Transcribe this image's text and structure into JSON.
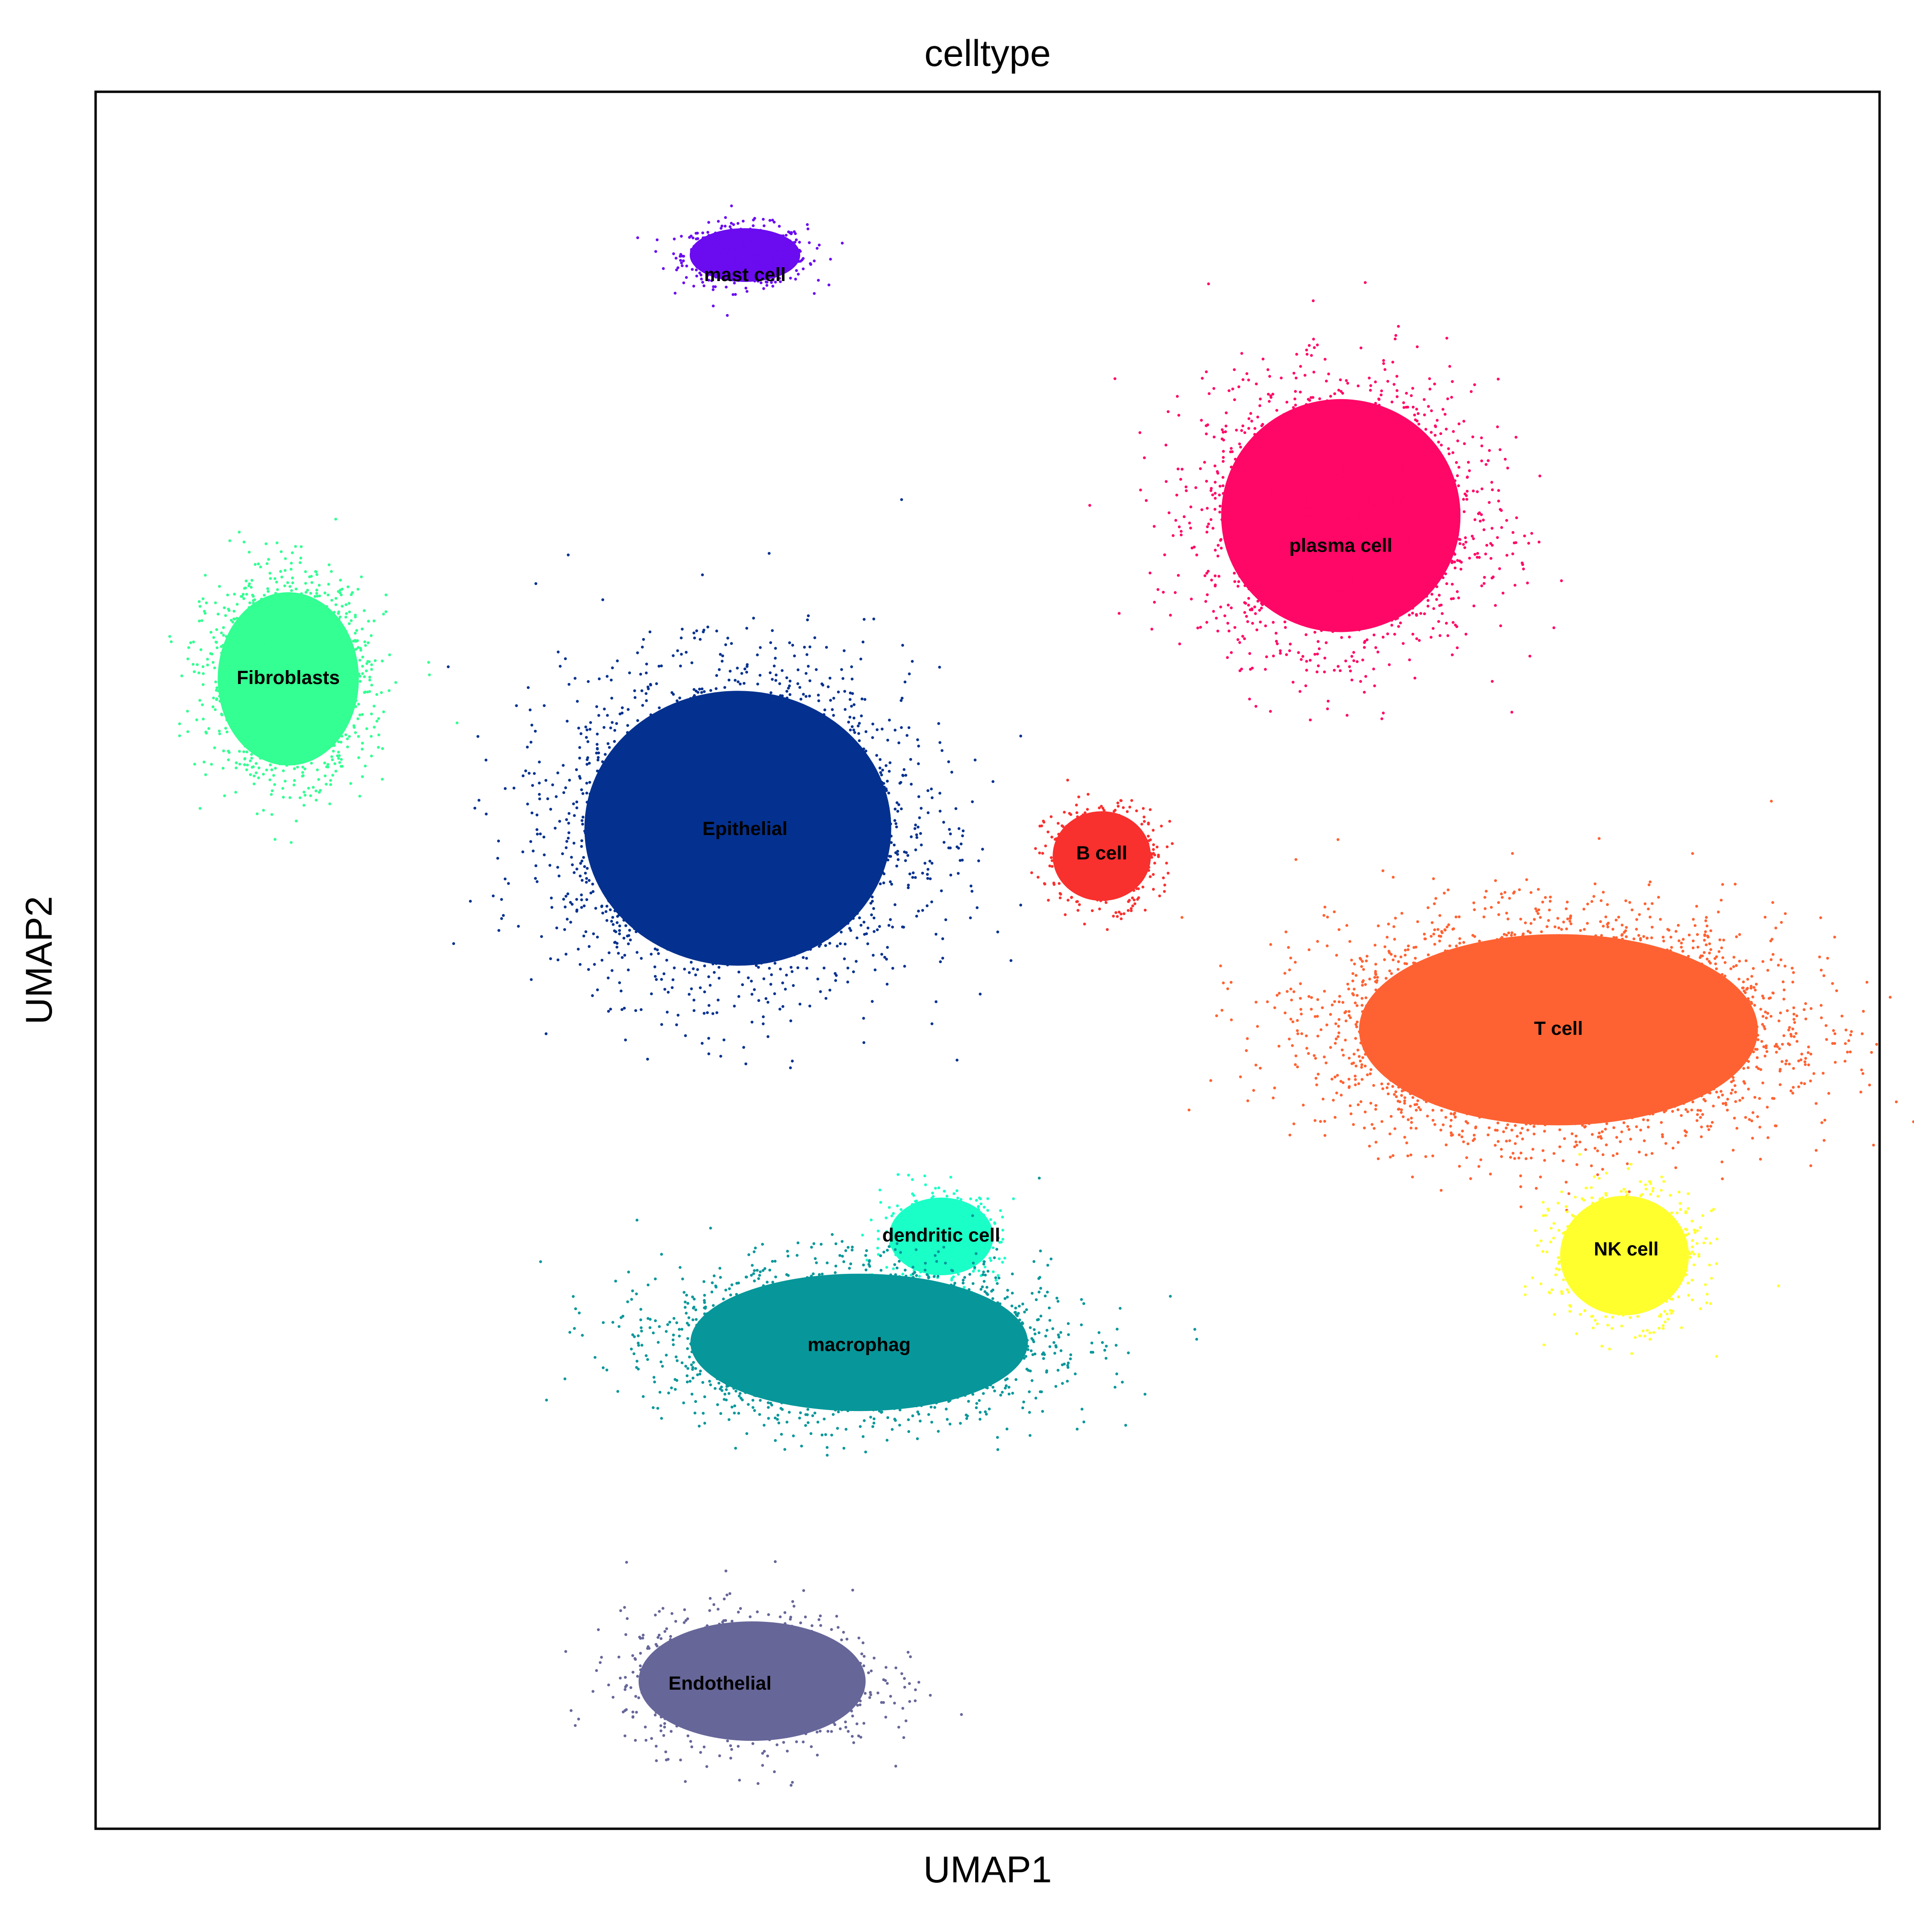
{
  "chart_data": {
    "type": "scatter",
    "title": "celltype",
    "xlabel": "UMAP1",
    "ylabel": "UMAP2",
    "xlim": [
      0,
      10
    ],
    "ylim": [
      0,
      10
    ],
    "grid": false,
    "legend": "on data",
    "series": [
      {
        "name": "mast cell",
        "color": "#6a0bf0",
        "cx": 3.64,
        "cy": 9.06,
        "rx": 0.36,
        "ry": 0.18,
        "n": 650,
        "label_x": 3.64,
        "label_y": 8.94
      },
      {
        "name": "plasma cell",
        "color": "#ff0766",
        "cx": 6.98,
        "cy": 7.56,
        "rx": 0.78,
        "ry": 0.78,
        "n": 2600,
        "label_x": 6.98,
        "label_y": 7.38
      },
      {
        "name": "Fibroblasts",
        "color": "#33ff92",
        "cx": 1.08,
        "cy": 6.62,
        "rx": 0.46,
        "ry": 0.58,
        "n": 1800,
        "label_x": 1.08,
        "label_y": 6.62
      },
      {
        "name": "Epithelial",
        "color": "#04318f",
        "cx": 3.6,
        "cy": 5.76,
        "rx": 1.0,
        "ry": 0.92,
        "n": 3600,
        "label_x": 3.64,
        "label_y": 5.75
      },
      {
        "name": "B cell",
        "color": "#f8302e",
        "cx": 5.64,
        "cy": 5.6,
        "rx": 0.32,
        "ry": 0.3,
        "n": 600,
        "label_x": 5.64,
        "label_y": 5.61
      },
      {
        "name": "T cell",
        "color": "#ff6232",
        "cx": 8.2,
        "cy": 4.6,
        "rx": 1.3,
        "ry": 0.64,
        "n": 4400,
        "label_x": 8.2,
        "label_y": 4.6
      },
      {
        "name": "NK cell",
        "color": "#ffff2e",
        "cx": 8.57,
        "cy": 3.3,
        "rx": 0.42,
        "ry": 0.4,
        "n": 900,
        "label_x": 8.58,
        "label_y": 3.33
      },
      {
        "name": "dendritic cell",
        "color": "#1affc7",
        "cx": 4.74,
        "cy": 3.41,
        "rx": 0.34,
        "ry": 0.26,
        "n": 450,
        "label_x": 4.74,
        "label_y": 3.41
      },
      {
        "name": "macrophag",
        "color": "#07979a",
        "cx": 4.28,
        "cy": 2.8,
        "rx": 1.1,
        "ry": 0.46,
        "n": 2600,
        "label_x": 4.28,
        "label_y": 2.78
      },
      {
        "name": "Endothelial",
        "color": "#666699",
        "cx": 3.68,
        "cy": 0.85,
        "rx": 0.74,
        "ry": 0.4,
        "n": 1100,
        "label_x": 3.5,
        "label_y": 0.83
      }
    ]
  }
}
